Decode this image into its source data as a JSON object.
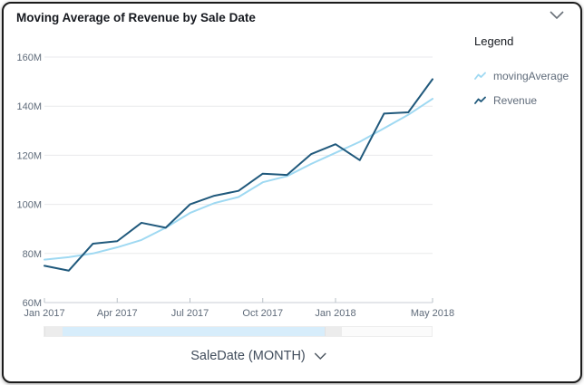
{
  "card": {
    "title": "Moving Average of Revenue by Sale Date"
  },
  "legend": {
    "title": "Legend",
    "items": [
      {
        "label": "movingAverage",
        "color": "#9fd9f2"
      },
      {
        "label": "Revenue",
        "color": "#20597c"
      }
    ]
  },
  "x_axis_control": {
    "label": "SaleDate (MONTH)"
  },
  "slider": {
    "selected_color": "#d7edfb",
    "handle_color": "#ececec"
  },
  "chart_data": {
    "type": "line",
    "title": "Moving Average of Revenue by Sale Date",
    "xlabel": "SaleDate (MONTH)",
    "ylabel": "",
    "grid": true,
    "legend_position": "right",
    "ylim": [
      60,
      160
    ],
    "y_ticks": [
      60,
      80,
      100,
      120,
      140,
      160
    ],
    "y_tick_labels": [
      "60M",
      "80M",
      "100M",
      "120M",
      "140M",
      "160M"
    ],
    "x": [
      "Jan 2017",
      "Feb 2017",
      "Mar 2017",
      "Apr 2017",
      "May 2017",
      "Jun 2017",
      "Jul 2017",
      "Aug 2017",
      "Sep 2017",
      "Oct 2017",
      "Nov 2017",
      "Dec 2017",
      "Jan 2018",
      "Feb 2018",
      "Mar 2018",
      "Apr 2018",
      "May 2018"
    ],
    "x_tick_labels": [
      "Jan 2017",
      "Apr 2017",
      "Jul 2017",
      "Oct 2017",
      "Jan 2018",
      "May 2018"
    ],
    "x_tick_indices": [
      0,
      3,
      6,
      9,
      12,
      16
    ],
    "series": [
      {
        "name": "movingAverage",
        "color": "#9fd9f2",
        "values": [
          77.5,
          78.5,
          80,
          82.5,
          85.5,
          90.5,
          96.5,
          100.5,
          103,
          109,
          111.5,
          116.5,
          121,
          125.5,
          131,
          136.5,
          143
        ]
      },
      {
        "name": "Revenue",
        "color": "#20597c",
        "values": [
          75,
          73,
          84,
          85,
          92.5,
          90.5,
          100,
          103.5,
          105.5,
          112.5,
          112,
          120.5,
          124.5,
          118,
          137,
          137.5,
          151
        ]
      }
    ]
  }
}
